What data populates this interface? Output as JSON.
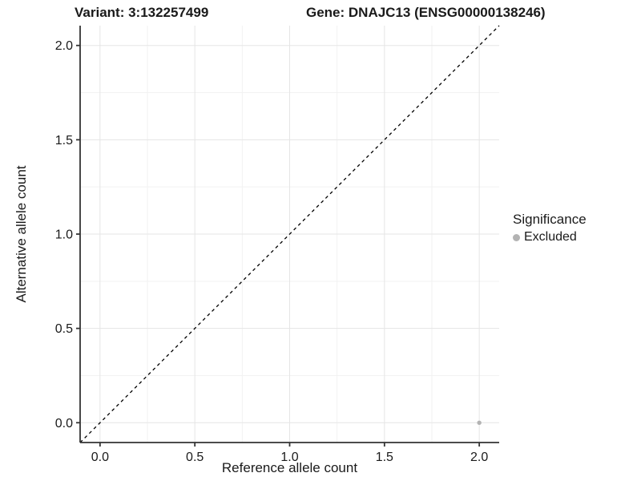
{
  "header": {
    "variant_title": "Variant: 3:132257499",
    "gene_title": "Gene: DNAJC13 (ENSG00000138246)"
  },
  "legend": {
    "title": "Significance",
    "items": [
      {
        "label": "Excluded",
        "marker": "circle-icon",
        "color": "#b3b3b3"
      }
    ]
  },
  "chart_data": {
    "type": "scatter",
    "xlabel": "Reference allele count",
    "ylabel": "Alternative allele count",
    "xlim": [
      -0.105,
      2.105
    ],
    "ylim": [
      -0.105,
      2.105
    ],
    "x_ticks": [
      0,
      0.5,
      1,
      1.5,
      2
    ],
    "x_tick_labels": [
      "0.0",
      "0.5",
      "1.0",
      "1.5",
      "2.0"
    ],
    "y_ticks": [
      0,
      0.5,
      1,
      1.5,
      2
    ],
    "y_tick_labels": [
      "0.0",
      "0.5",
      "1.0",
      "1.5",
      "2.0"
    ],
    "x_minor_ticks": [
      0.25,
      0.75,
      1.25,
      1.75
    ],
    "y_minor_ticks": [
      0.25,
      0.75,
      1.25,
      1.75
    ],
    "grid": "major+minor",
    "legend_position": "right",
    "reference_line": {
      "type": "identity",
      "style": "dashed",
      "x1": -0.105,
      "y1": -0.105,
      "x2": 2.105,
      "y2": 2.105
    },
    "series": [
      {
        "name": "Excluded",
        "color": "#b3b3b3",
        "points": [
          {
            "x": 2,
            "y": 0
          }
        ]
      }
    ],
    "colors": {
      "background": "#ffffff",
      "grid_major": "#e5e5e5",
      "grid_minor": "#f2f2f2",
      "axis": "#333333",
      "tick_label": "#1a1a1a",
      "reference_line": "#000000"
    }
  }
}
